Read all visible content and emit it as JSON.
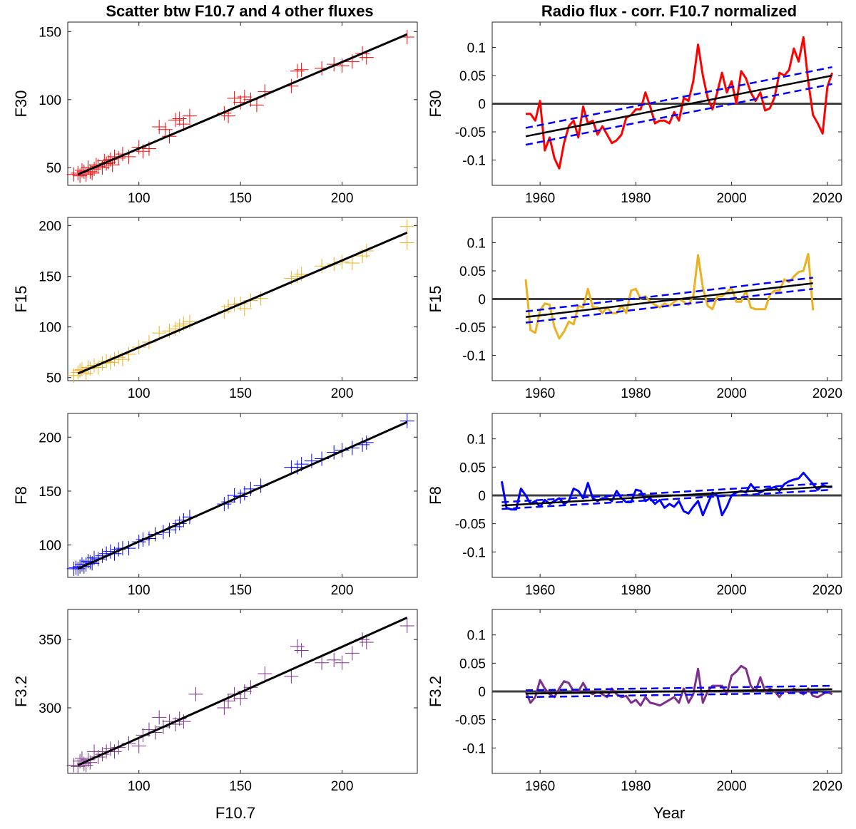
{
  "titles": {
    "left": "Scatter btw F10.7 and 4 other fluxes",
    "right": "Radio flux - corr. F10.7 normalized"
  },
  "xlabels": {
    "left": "F10.7",
    "right": "Year"
  },
  "colors": {
    "red": "#ff0000",
    "orange": "#edb120",
    "blue": "#0000ff",
    "purple": "#7e2f8e",
    "fit": "#000000",
    "ci": "#0000ff",
    "zero": "#404040"
  },
  "chart_data": [
    {
      "type": "scatter",
      "panel": "scatter",
      "ylabel": "F30",
      "color": "#ff0000",
      "xlim": [
        65,
        237
      ],
      "ylim": [
        37,
        157
      ],
      "xticks": [
        100,
        150,
        200
      ],
      "yticks": [
        50,
        100,
        150
      ],
      "fit": {
        "x": [
          70,
          232
        ],
        "y": [
          45,
          148
        ]
      },
      "x": [
        68,
        70,
        71,
        72,
        73,
        74,
        75,
        76,
        77,
        78,
        79,
        80,
        82,
        83,
        84,
        85,
        86,
        87,
        88,
        90,
        92,
        95,
        100,
        102,
        105,
        110,
        113,
        115,
        118,
        120,
        122,
        125,
        142,
        144,
        147,
        150,
        152,
        155,
        158,
        162,
        175,
        178,
        180,
        190,
        196,
        200,
        205,
        210,
        212,
        232
      ],
      "y": [
        45,
        46,
        44,
        48,
        47,
        45,
        50,
        47,
        46,
        49,
        52,
        51,
        50,
        55,
        53,
        54,
        56,
        52,
        58,
        57,
        60,
        58,
        65,
        62,
        64,
        80,
        78,
        73,
        85,
        86,
        82,
        88,
        90,
        88,
        101,
        98,
        102,
        100,
        96,
        106,
        110,
        121,
        122,
        123,
        126,
        125,
        128,
        134,
        131,
        146
      ]
    },
    {
      "type": "line",
      "panel": "trend",
      "ylabel": "F30",
      "color": "#ff0000",
      "xlim": [
        1950,
        2023
      ],
      "ylim": [
        -0.145,
        0.145
      ],
      "xticks": [
        1960,
        1980,
        2000,
        2020
      ],
      "yticks": [
        0.1,
        0.05,
        0,
        -0.05,
        -0.1
      ],
      "ytick_labels": [
        "0.1",
        "0.05",
        "0",
        "-0.05",
        "-0.1"
      ],
      "fit": {
        "x": [
          1957,
          2021
        ],
        "y": [
          -0.058,
          0.05
        ]
      },
      "ci_upper": {
        "x": [
          1957,
          2021
        ],
        "y": [
          -0.043,
          0.065
        ]
      },
      "ci_lower": {
        "x": [
          1957,
          2021
        ],
        "y": [
          -0.073,
          0.035
        ]
      },
      "x": [
        1957,
        1958,
        1959,
        1960,
        1961,
        1962,
        1963,
        1964,
        1965,
        1966,
        1967,
        1968,
        1969,
        1970,
        1971,
        1972,
        1973,
        1974,
        1975,
        1976,
        1977,
        1978,
        1979,
        1980,
        1981,
        1982,
        1983,
        1984,
        1985,
        1986,
        1987,
        1988,
        1989,
        1990,
        1991,
        1992,
        1993,
        1994,
        1995,
        1996,
        1997,
        1998,
        1999,
        2000,
        2001,
        2002,
        2003,
        2004,
        2005,
        2006,
        2007,
        2008,
        2009,
        2010,
        2011,
        2012,
        2013,
        2014,
        2015,
        2016,
        2017,
        2018,
        2019,
        2020,
        2021
      ],
      "y": [
        -0.018,
        -0.018,
        -0.03,
        0.005,
        -0.083,
        -0.06,
        -0.097,
        -0.115,
        -0.07,
        -0.04,
        -0.03,
        -0.06,
        -0.005,
        -0.035,
        -0.03,
        -0.055,
        -0.04,
        -0.055,
        -0.07,
        -0.065,
        -0.055,
        -0.025,
        -0.02,
        -0.01,
        -0.01,
        0.02,
        -0.005,
        -0.035,
        -0.03,
        -0.03,
        -0.035,
        -0.015,
        -0.03,
        0.01,
        0.005,
        0.04,
        0.105,
        0.05,
        0.01,
        -0.01,
        0.02,
        0.055,
        0.02,
        0.04,
        0.0,
        0.058,
        0.045,
        0.02,
        0.005,
        0.02,
        -0.012,
        -0.008,
        0.012,
        0.055,
        0.05,
        0.06,
        0.098,
        0.075,
        0.118,
        0.04,
        -0.02,
        -0.035,
        -0.053,
        0.03,
        0.055
      ]
    },
    {
      "type": "scatter",
      "panel": "scatter",
      "ylabel": "F15",
      "color": "#edb120",
      "xlim": [
        65,
        237
      ],
      "ylim": [
        47,
        208
      ],
      "xticks": [
        100,
        150,
        200
      ],
      "yticks": [
        50,
        100,
        150,
        200
      ],
      "fit": {
        "x": [
          70,
          232
        ],
        "y": [
          54,
          193
        ]
      },
      "x": [
        68,
        70,
        71,
        72,
        74,
        75,
        76,
        78,
        80,
        82,
        84,
        86,
        88,
        90,
        92,
        95,
        100,
        105,
        110,
        115,
        118,
        120,
        122,
        125,
        142,
        144,
        147,
        150,
        152,
        155,
        160,
        175,
        178,
        180,
        190,
        196,
        200,
        205,
        210,
        212,
        232,
        232
      ],
      "y": [
        52,
        55,
        57,
        58,
        54,
        60,
        59,
        62,
        60,
        64,
        66,
        65,
        68,
        70,
        68,
        73,
        80,
        85,
        94,
        96,
        98,
        101,
        103,
        105,
        115,
        120,
        122,
        123,
        118,
        126,
        128,
        148,
        150,
        152,
        160,
        162,
        164,
        163,
        170,
        175,
        199,
        183
      ]
    },
    {
      "type": "line",
      "panel": "trend",
      "ylabel": "F15",
      "color": "#edb120",
      "xlim": [
        1950,
        2023
      ],
      "ylim": [
        -0.145,
        0.145
      ],
      "xticks": [
        1960,
        1980,
        2000,
        2020
      ],
      "yticks": [
        0.1,
        0.05,
        0,
        -0.05,
        -0.1
      ],
      "ytick_labels": [
        "0.1",
        "0.05",
        "0",
        "-0.05",
        "-0.1"
      ],
      "fit": {
        "x": [
          1957,
          2017
        ],
        "y": [
          -0.032,
          0.028
        ]
      },
      "ci_upper": {
        "x": [
          1957,
          2017
        ],
        "y": [
          -0.022,
          0.038
        ]
      },
      "ci_lower": {
        "x": [
          1957,
          2017
        ],
        "y": [
          -0.042,
          0.018
        ]
      },
      "x": [
        1957,
        1958,
        1959,
        1960,
        1961,
        1962,
        1963,
        1964,
        1965,
        1966,
        1967,
        1968,
        1969,
        1970,
        1971,
        1972,
        1973,
        1974,
        1975,
        1976,
        1977,
        1978,
        1979,
        1980,
        1981,
        1982,
        1983,
        1984,
        1985,
        1986,
        1987,
        1988,
        1989,
        1990,
        1991,
        1992,
        1993,
        1994,
        1995,
        1996,
        1997,
        1998,
        1999,
        2000,
        2001,
        2002,
        2003,
        2004,
        2005,
        2006,
        2007,
        2008,
        2009,
        2010,
        2011,
        2012,
        2013,
        2014,
        2015,
        2016,
        2017
      ],
      "y": [
        0.035,
        -0.055,
        -0.06,
        -0.02,
        -0.008,
        -0.01,
        -0.05,
        -0.07,
        -0.058,
        -0.04,
        -0.045,
        -0.012,
        -0.015,
        0.018,
        -0.015,
        -0.015,
        -0.025,
        -0.015,
        -0.025,
        -0.025,
        -0.012,
        -0.025,
        0.015,
        0.018,
        0.0,
        0.005,
        -0.005,
        -0.01,
        -0.015,
        -0.008,
        -0.012,
        -0.005,
        0.0,
        -0.005,
        -0.01,
        0.005,
        0.078,
        0.02,
        -0.012,
        -0.018,
        0.005,
        0.005,
        0.012,
        0.02,
        -0.005,
        -0.005,
        0.015,
        -0.015,
        -0.018,
        -0.018,
        -0.018,
        0.008,
        0.015,
        0.015,
        0.035,
        0.03,
        0.04,
        0.048,
        0.05,
        0.08,
        -0.02
      ]
    },
    {
      "type": "scatter",
      "panel": "scatter",
      "ylabel": "F8",
      "color": "#0000ff",
      "xlim": [
        65,
        237
      ],
      "ylim": [
        70,
        222
      ],
      "xticks": [
        100,
        150,
        200
      ],
      "yticks": [
        100,
        150,
        200
      ],
      "fit": {
        "x": [
          70,
          232
        ],
        "y": [
          78,
          214
        ]
      },
      "x": [
        68,
        69,
        70,
        71,
        72,
        73,
        74,
        75,
        76,
        77,
        78,
        80,
        82,
        84,
        86,
        88,
        90,
        92,
        95,
        100,
        102,
        105,
        108,
        112,
        115,
        118,
        120,
        122,
        125,
        142,
        144,
        147,
        150,
        152,
        155,
        160,
        175,
        178,
        180,
        185,
        190,
        196,
        200,
        205,
        210,
        212,
        232
      ],
      "y": [
        78,
        79,
        78,
        80,
        82,
        80,
        82,
        85,
        84,
        83,
        88,
        87,
        90,
        92,
        94,
        92,
        96,
        97,
        97,
        103,
        105,
        106,
        110,
        112,
        114,
        117,
        120,
        123,
        126,
        138,
        140,
        146,
        145,
        148,
        152,
        155,
        172,
        172,
        175,
        178,
        180,
        186,
        188,
        190,
        193,
        195,
        215
      ]
    },
    {
      "type": "line",
      "panel": "trend",
      "ylabel": "F8",
      "color": "#0000ff",
      "xlim": [
        1950,
        2023
      ],
      "ylim": [
        -0.145,
        0.145
      ],
      "xticks": [
        1960,
        1980,
        2000,
        2020
      ],
      "yticks": [
        0.1,
        0.05,
        0,
        -0.05,
        -0.1
      ],
      "ytick_labels": [
        "0.1",
        "0.05",
        "0",
        "-0.05",
        "-0.1"
      ],
      "fit": {
        "x": [
          1952,
          2021
        ],
        "y": [
          -0.018,
          0.016
        ]
      },
      "ci_upper": {
        "x": [
          1952,
          2021
        ],
        "y": [
          -0.012,
          0.022
        ]
      },
      "ci_lower": {
        "x": [
          1952,
          2021
        ],
        "y": [
          -0.024,
          0.01
        ]
      },
      "x": [
        1952,
        1953,
        1954,
        1955,
        1956,
        1957,
        1958,
        1959,
        1960,
        1961,
        1962,
        1963,
        1964,
        1965,
        1966,
        1967,
        1968,
        1969,
        1970,
        1971,
        1972,
        1973,
        1974,
        1975,
        1976,
        1977,
        1978,
        1979,
        1980,
        1981,
        1982,
        1983,
        1984,
        1985,
        1986,
        1987,
        1988,
        1989,
        1990,
        1991,
        1992,
        1993,
        1994,
        1995,
        1996,
        1997,
        1998,
        1999,
        2000,
        2001,
        2002,
        2003,
        2004,
        2005,
        2006,
        2007,
        2008,
        2009,
        2010,
        2011,
        2012,
        2013,
        2014,
        2015,
        2016,
        2017,
        2018,
        2019,
        2020,
        2021
      ],
      "y": [
        0.025,
        -0.022,
        -0.025,
        -0.025,
        0.012,
        0.0,
        -0.015,
        -0.01,
        -0.02,
        -0.008,
        -0.015,
        -0.01,
        -0.005,
        -0.015,
        -0.01,
        0.012,
        0.008,
        -0.005,
        0.022,
        -0.005,
        -0.01,
        -0.005,
        -0.005,
        -0.01,
        0.008,
        -0.005,
        -0.012,
        -0.012,
        0.01,
        0.008,
        -0.01,
        -0.005,
        -0.015,
        -0.008,
        -0.022,
        -0.015,
        -0.02,
        -0.01,
        -0.028,
        -0.032,
        -0.02,
        -0.01,
        -0.035,
        -0.015,
        0.005,
        0.0,
        -0.035,
        -0.02,
        0.0,
        0.005,
        0.008,
        0.005,
        0.02,
        0.01,
        0.005,
        0.01,
        0.012,
        0.015,
        0.008,
        0.02,
        0.025,
        0.028,
        0.03,
        0.04,
        0.03,
        0.02,
        0.01,
        0.018,
        0.015,
        0.015
      ]
    },
    {
      "type": "scatter",
      "panel": "scatter",
      "ylabel": "F3.2",
      "color": "#7e2f8e",
      "xlim": [
        65,
        237
      ],
      "ylim": [
        252,
        372
      ],
      "xticks": [
        100,
        150,
        200
      ],
      "yticks": [
        300,
        350
      ],
      "fit": {
        "x": [
          70,
          232
        ],
        "y": [
          258,
          366
        ]
      },
      "x": [
        68,
        70,
        71,
        72,
        73,
        74,
        75,
        76,
        78,
        80,
        82,
        84,
        86,
        88,
        90,
        95,
        100,
        102,
        105,
        108,
        110,
        112,
        115,
        118,
        120,
        122,
        128,
        142,
        144,
        147,
        150,
        152,
        155,
        162,
        175,
        178,
        180,
        190,
        196,
        200,
        205,
        210,
        212,
        232
      ],
      "y": [
        258,
        257,
        261,
        263,
        259,
        258,
        262,
        260,
        268,
        264,
        266,
        268,
        270,
        268,
        271,
        274,
        272,
        280,
        284,
        282,
        293,
        286,
        290,
        288,
        292,
        290,
        310,
        300,
        305,
        310,
        307,
        312,
        315,
        325,
        323,
        345,
        342,
        333,
        335,
        333,
        340,
        350,
        348,
        360
      ]
    },
    {
      "type": "line",
      "panel": "trend",
      "ylabel": "F3.2",
      "color": "#7e2f8e",
      "xlim": [
        1950,
        2023
      ],
      "ylim": [
        -0.145,
        0.145
      ],
      "xticks": [
        1960,
        1980,
        2000,
        2020
      ],
      "yticks": [
        0.1,
        0.05,
        0,
        -0.05,
        -0.1
      ],
      "ytick_labels": [
        "0.1",
        "0.05",
        "0",
        "-0.05",
        "-0.1"
      ],
      "fit": {
        "x": [
          1957,
          2021
        ],
        "y": [
          -0.004,
          0.004
        ]
      },
      "ci_upper": {
        "x": [
          1957,
          2021
        ],
        "y": [
          0.002,
          0.01
        ]
      },
      "ci_lower": {
        "x": [
          1957,
          2021
        ],
        "y": [
          -0.01,
          -0.002
        ]
      },
      "x": [
        1957,
        1958,
        1959,
        1960,
        1961,
        1962,
        1963,
        1964,
        1965,
        1966,
        1967,
        1968,
        1969,
        1970,
        1971,
        1972,
        1973,
        1974,
        1975,
        1976,
        1977,
        1978,
        1979,
        1980,
        1981,
        1982,
        1983,
        1984,
        1985,
        1986,
        1987,
        1988,
        1989,
        1990,
        1991,
        1992,
        1993,
        1994,
        1995,
        1996,
        1997,
        1998,
        1999,
        2000,
        2001,
        2002,
        2003,
        2004,
        2005,
        2006,
        2007,
        2008,
        2009,
        2010,
        2011,
        2012,
        2013,
        2014,
        2015,
        2016,
        2017,
        2018,
        2019,
        2020,
        2021
      ],
      "y": [
        0.0,
        -0.02,
        -0.01,
        0.02,
        0.005,
        -0.005,
        -0.01,
        0.005,
        0.018,
        0.015,
        0.0,
        0.0,
        0.015,
        0.0,
        -0.005,
        0.0,
        -0.005,
        -0.01,
        0.005,
        -0.005,
        -0.01,
        -0.008,
        -0.02,
        -0.015,
        -0.025,
        -0.01,
        -0.02,
        -0.022,
        -0.025,
        -0.02,
        -0.015,
        -0.01,
        -0.02,
        0.005,
        -0.02,
        -0.005,
        0.04,
        -0.02,
        0.0,
        0.01,
        0.01,
        0.01,
        -0.005,
        0.028,
        0.035,
        0.045,
        0.04,
        0.01,
        0.0,
        0.025,
        0.0,
        0.005,
        0.0,
        -0.01,
        0.002,
        -0.002,
        0.005,
        0.0,
        -0.005,
        0.005,
        -0.008,
        -0.01,
        -0.005,
        0.0,
        -0.005
      ]
    }
  ]
}
